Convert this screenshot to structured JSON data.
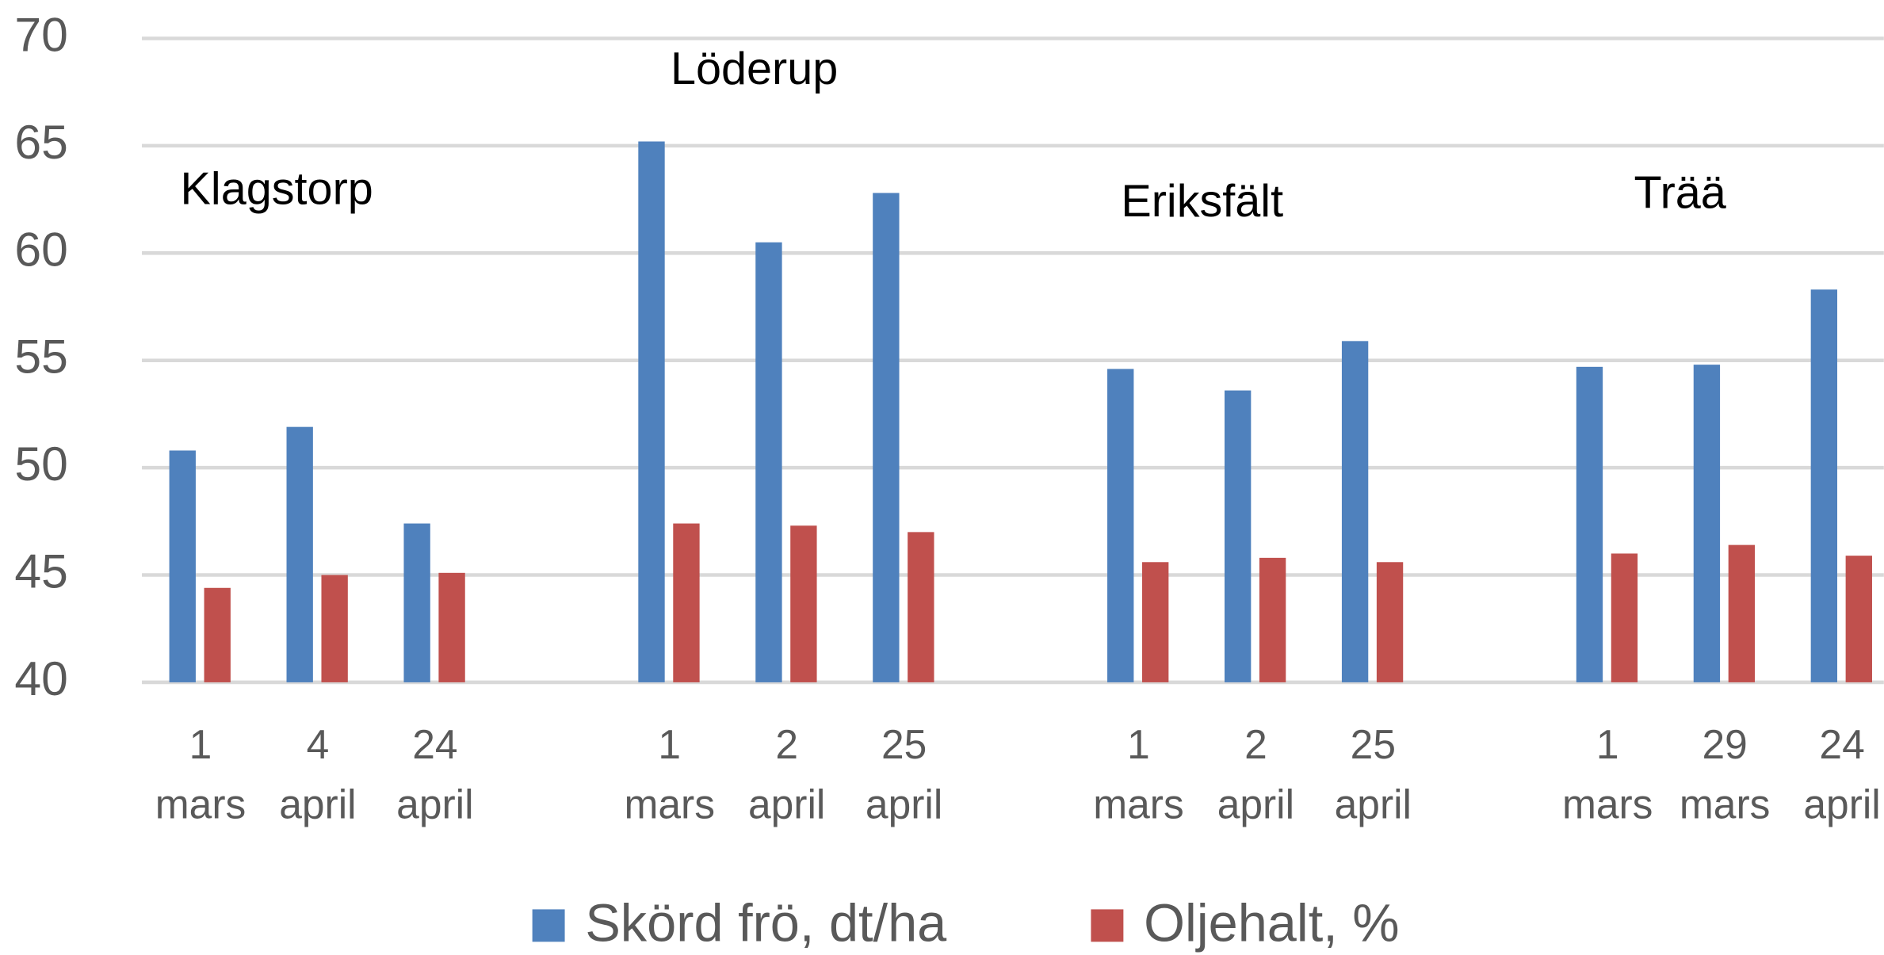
{
  "chart_data": {
    "type": "bar",
    "categories": [
      [
        "1",
        "mars"
      ],
      [
        "4",
        "april"
      ],
      [
        "24",
        "april"
      ],
      null,
      [
        "1",
        "mars"
      ],
      [
        "2",
        "april"
      ],
      [
        "25",
        "april"
      ],
      null,
      [
        "1",
        "mars"
      ],
      [
        "2",
        "april"
      ],
      [
        "25",
        "april"
      ],
      null,
      [
        "1",
        "mars"
      ],
      [
        "29",
        "mars"
      ],
      [
        "24",
        "april"
      ]
    ],
    "series": [
      {
        "name": "Skörd frö, dt/ha",
        "color": "#4f81bd",
        "values": [
          50.8,
          51.9,
          47.4,
          null,
          65.2,
          60.5,
          62.8,
          null,
          54.6,
          53.6,
          55.9,
          null,
          54.7,
          54.8,
          58.3
        ]
      },
      {
        "name": "Oljehalt, %",
        "color": "#c0504d",
        "values": [
          44.4,
          45.0,
          45.1,
          null,
          47.4,
          47.3,
          47.0,
          null,
          45.6,
          45.8,
          45.6,
          null,
          46.0,
          46.4,
          45.9
        ]
      }
    ],
    "annotations": [
      "Klagstorp",
      "Löderup",
      "Eriksfält",
      "Trää"
    ],
    "ylim": [
      40,
      70
    ],
    "yticks": [
      40,
      45,
      50,
      55,
      60,
      65,
      70
    ],
    "grid": true,
    "legend": "bottom"
  }
}
